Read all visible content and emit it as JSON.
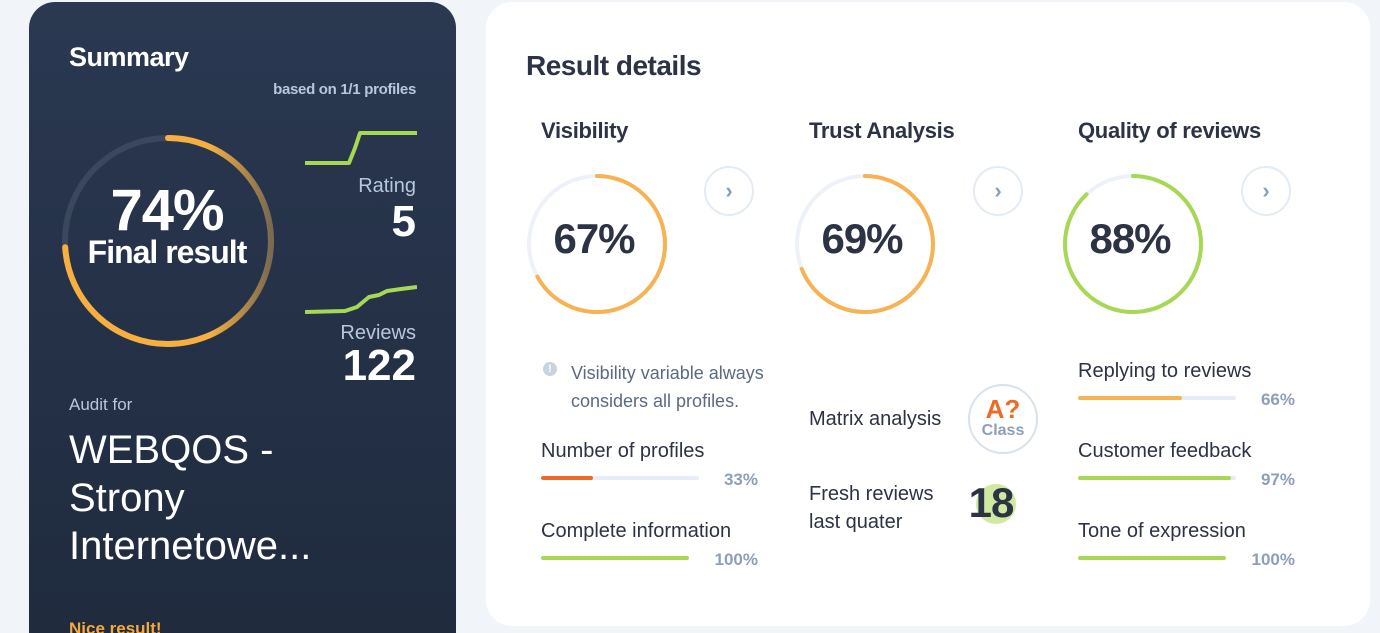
{
  "summary": {
    "title": "Summary",
    "based_on": "based on 1/1 profiles",
    "final_percent": "74%",
    "final_value": 0.74,
    "final_label": "Final result",
    "rating_label": "Rating",
    "rating_value": "5",
    "reviews_label": "Reviews",
    "reviews_value": "122",
    "audit_for_label": "Audit for",
    "audit_name": "WEBQOS - Strony Internetowe...",
    "nice_result": "Nice result!"
  },
  "details": {
    "heading": "Result details",
    "columns": [
      {
        "title": "Visibility",
        "percent": "67%",
        "value": 0.67,
        "color": "#f7b254",
        "note": "Visibility variable always considers all profiles.",
        "bars": [
          {
            "label": "Number of profiles",
            "percent": "33%",
            "value": 0.33,
            "color": "#ef6a24"
          },
          {
            "label": "Complete information",
            "percent": "100%",
            "value": 1.0,
            "color": "#a6d854"
          }
        ]
      },
      {
        "title": "Trust Analysis",
        "percent": "69%",
        "value": 0.69,
        "color": "#f7b254",
        "matrix_label": "Matrix analysis",
        "class_grade": "A?",
        "class_word": "Class",
        "fresh_label": "Fresh reviews last quater",
        "fresh_value": "18"
      },
      {
        "title": "Quality of reviews",
        "percent": "88%",
        "value": 0.88,
        "color": "#a6d854",
        "bars": [
          {
            "label": "Replying to reviews",
            "percent": "66%",
            "value": 0.66,
            "color": "#f7b254"
          },
          {
            "label": "Customer feedback",
            "percent": "97%",
            "value": 0.97,
            "color": "#a6d854"
          },
          {
            "label": "Tone of expression",
            "percent": "100%",
            "value": 1.0,
            "color": "#a6d854"
          }
        ]
      }
    ],
    "arrow_glyph": "›"
  },
  "colors": {
    "summary_bg": "#26334a",
    "accent_orange": "#f7b254",
    "accent_green": "#a6d854",
    "accent_red": "#ef6a24"
  }
}
